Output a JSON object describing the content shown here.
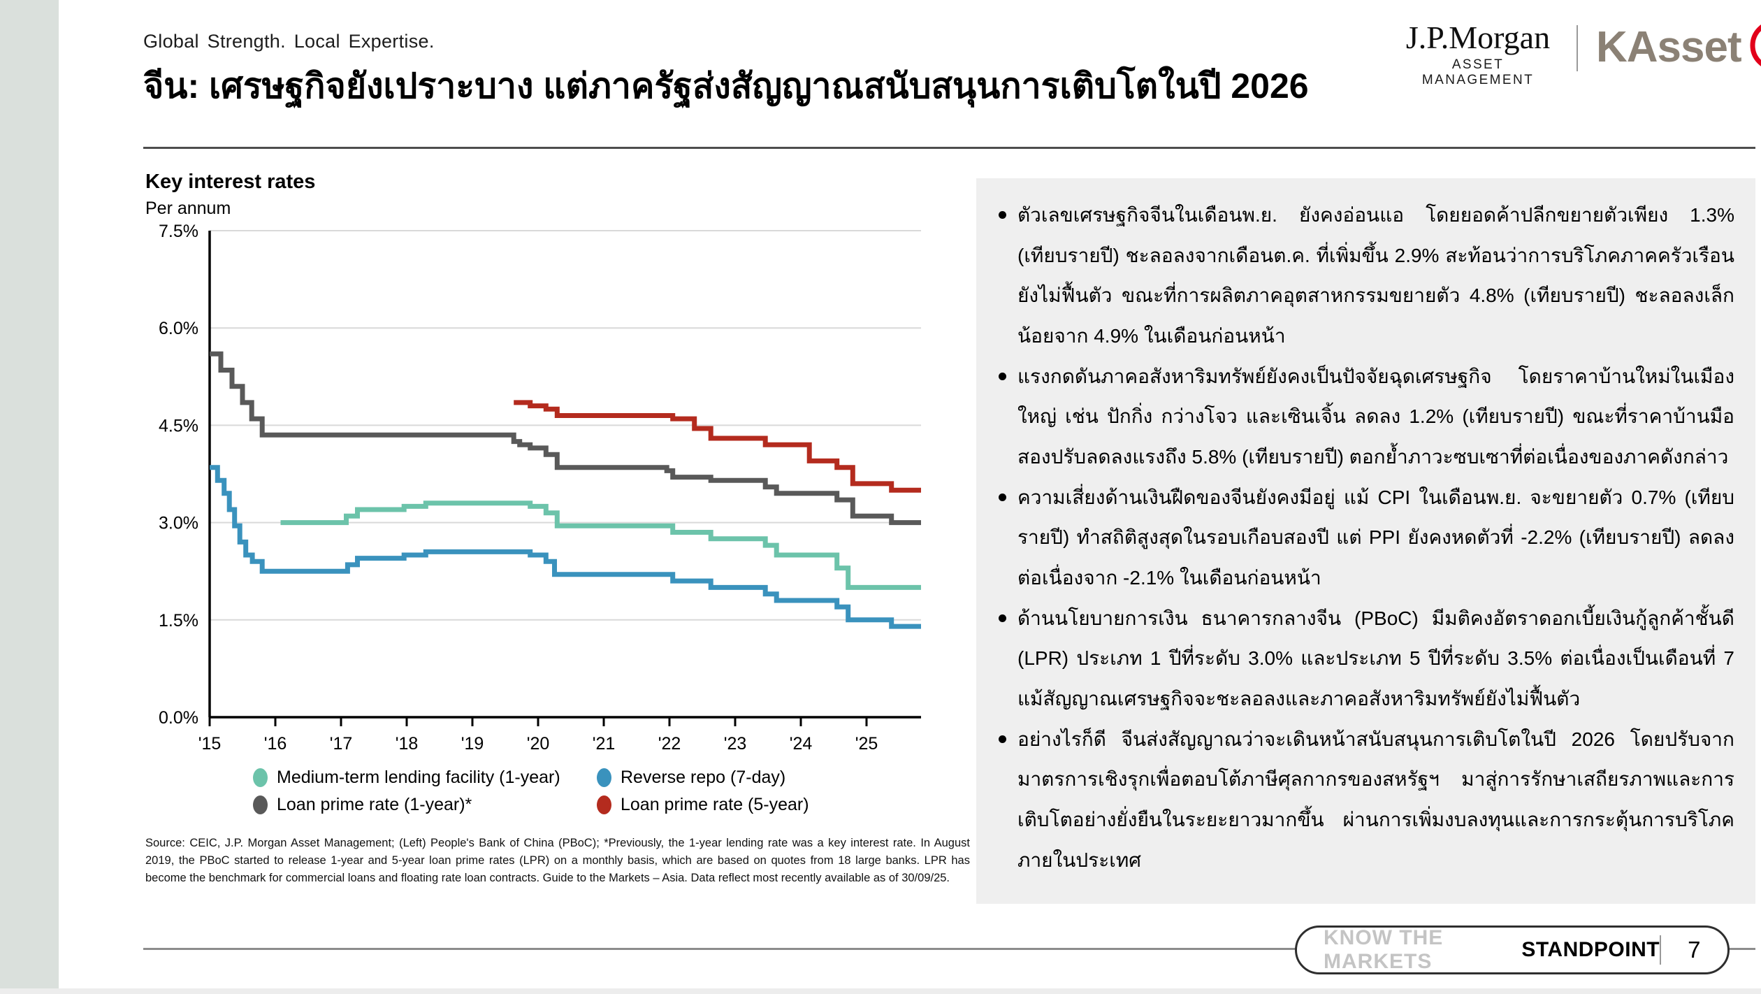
{
  "header": {
    "tagline": "Global Strength. Local Expertise.",
    "title": "จีน: เศรษฐกิจยังเปราะบาง แต่ภาครัฐส่งสัญญาณสนับสนุนการเติบโตในปี 2026"
  },
  "logos": {
    "jpmorgan_name": "J.P.Morgan",
    "jpmorgan_sub": "ASSET MANAGEMENT",
    "kasset_word": "KAsset"
  },
  "colors": {
    "left_strip": "#DAE0DC",
    "panel_bg": "#EFEFEF",
    "kasset_brand": "#8B8175",
    "kasset_ring": "#E2001A",
    "kasset_leaf": "#3FA535",
    "footer_muted": "#C4C4C4"
  },
  "chart_data": {
    "type": "line",
    "step": true,
    "title": "Key interest rates",
    "subtitle": "Per annum",
    "x_range": [
      2015,
      2025.83
    ],
    "x_ticks": [
      2015,
      2016,
      2017,
      2018,
      2019,
      2020,
      2021,
      2022,
      2023,
      2024,
      2025
    ],
    "x_tick_labels": [
      "'15",
      "'16",
      "'17",
      "'18",
      "'19",
      "'20",
      "'21",
      "'22",
      "'23",
      "'24",
      "'25"
    ],
    "ylim": [
      0,
      7.5
    ],
    "y_gridlines": [
      1.5,
      3.0,
      4.5,
      6.0,
      7.5
    ],
    "y_tick_labels": [
      "0.0%",
      "1.5%",
      "3.0%",
      "4.5%",
      "6.0%",
      "7.5%"
    ],
    "legend_position": "bottom",
    "grid": true,
    "series": [
      {
        "name": "Medium-term lending facility (1-year)",
        "color": "#6CC3AA",
        "points": [
          [
            2016.08,
            3.0
          ],
          [
            2017.08,
            3.1
          ],
          [
            2017.25,
            3.2
          ],
          [
            2017.96,
            3.25
          ],
          [
            2018.29,
            3.3
          ],
          [
            2019.88,
            3.25
          ],
          [
            2020.12,
            3.15
          ],
          [
            2020.29,
            2.95
          ],
          [
            2022.05,
            2.85
          ],
          [
            2022.63,
            2.75
          ],
          [
            2023.46,
            2.65
          ],
          [
            2023.63,
            2.5
          ],
          [
            2024.55,
            2.3
          ],
          [
            2024.72,
            2.0
          ]
        ]
      },
      {
        "name": "Reverse repo (7-day)",
        "color": "#3A92BD",
        "points": [
          [
            2015.0,
            3.85
          ],
          [
            2015.12,
            3.65
          ],
          [
            2015.22,
            3.45
          ],
          [
            2015.3,
            3.2
          ],
          [
            2015.38,
            2.95
          ],
          [
            2015.46,
            2.7
          ],
          [
            2015.55,
            2.5
          ],
          [
            2015.65,
            2.4
          ],
          [
            2015.8,
            2.25
          ],
          [
            2017.1,
            2.35
          ],
          [
            2017.25,
            2.45
          ],
          [
            2017.96,
            2.5
          ],
          [
            2018.29,
            2.55
          ],
          [
            2019.88,
            2.5
          ],
          [
            2020.12,
            2.4
          ],
          [
            2020.25,
            2.2
          ],
          [
            2022.05,
            2.1
          ],
          [
            2022.63,
            2.0
          ],
          [
            2023.46,
            1.9
          ],
          [
            2023.63,
            1.8
          ],
          [
            2024.55,
            1.7
          ],
          [
            2024.72,
            1.5
          ],
          [
            2025.38,
            1.4
          ]
        ]
      },
      {
        "name": "Loan prime rate (1-year)*",
        "color": "#595959",
        "points": [
          [
            2015.0,
            5.6
          ],
          [
            2015.17,
            5.35
          ],
          [
            2015.34,
            5.1
          ],
          [
            2015.5,
            4.85
          ],
          [
            2015.64,
            4.6
          ],
          [
            2015.8,
            4.35
          ],
          [
            2019.63,
            4.25
          ],
          [
            2019.72,
            4.2
          ],
          [
            2019.88,
            4.15
          ],
          [
            2020.12,
            4.05
          ],
          [
            2020.29,
            3.85
          ],
          [
            2021.96,
            3.8
          ],
          [
            2022.05,
            3.7
          ],
          [
            2022.63,
            3.65
          ],
          [
            2023.46,
            3.55
          ],
          [
            2023.63,
            3.45
          ],
          [
            2024.55,
            3.35
          ],
          [
            2024.79,
            3.1
          ],
          [
            2025.38,
            3.0
          ]
        ]
      },
      {
        "name": "Loan prime rate (5-year)",
        "color": "#B42B1E",
        "points": [
          [
            2019.63,
            4.85
          ],
          [
            2019.88,
            4.8
          ],
          [
            2020.12,
            4.75
          ],
          [
            2020.29,
            4.65
          ],
          [
            2022.05,
            4.6
          ],
          [
            2022.38,
            4.45
          ],
          [
            2022.63,
            4.3
          ],
          [
            2023.46,
            4.2
          ],
          [
            2024.13,
            3.95
          ],
          [
            2024.55,
            3.85
          ],
          [
            2024.79,
            3.6
          ],
          [
            2025.38,
            3.5
          ]
        ]
      }
    ],
    "source": "Source: CEIC, J.P. Morgan Asset Management; (Left) People's Bank of China (PBoC); *Previously, the 1-year lending rate was a key interest rate. In August 2019, the PBoC started to release 1-year and 5-year loan prime rates (LPR) on a monthly basis, which are based on quotes from 18 large banks. LPR has become the benchmark for commercial loans and floating rate loan contracts. Guide to the Markets – Asia. Data reflect most recently available as of 30/09/25."
  },
  "panel": {
    "bullets": [
      "ตัวเลขเศรษฐกิจจีนในเดือนพ.ย. ยังคงอ่อนแอ โดยยอดค้าปลีกขยายตัวเพียง 1.3% (เทียบรายปี) ชะลอลงจากเดือนต.ค. ที่เพิ่มขึ้น 2.9% สะท้อนว่าการบริโภคภาคครัวเรือนยังไม่ฟื้นตัว ขณะที่การผลิตภาคอุตสาหกรรมขยายตัว 4.8% (เทียบรายปี) ชะลอลงเล็กน้อยจาก 4.9% ในเดือนก่อนหน้า",
      "แรงกดดันภาคอสังหาริมทรัพย์ยังคงเป็นปัจจัยฉุดเศรษฐกิจ โดยราคาบ้านใหม่ในเมืองใหญ่ เช่น ปักกิ่ง กว่างโจว และเซินเจิ้น ลดลง 1.2% (เทียบรายปี) ขณะที่ราคาบ้านมือสองปรับลดลงแรงถึง 5.8% (เทียบรายปี) ตอกย้ำภาวะซบเซาที่ต่อเนื่องของภาคดังกล่าว",
      "ความเสี่ยงด้านเงินฝืดของจีนยังคงมีอยู่ แม้ CPI ในเดือนพ.ย. จะขยายตัว 0.7% (เทียบรายปี) ทำสถิติสูงสุดในรอบเกือบสองปี แต่ PPI ยังคงหดตัวที่ -2.2% (เทียบรายปี) ลดลงต่อเนื่องจาก -2.1% ในเดือนก่อนหน้า",
      "ด้านนโยบายการเงิน ธนาคารกลางจีน (PBoC) มีมติคงอัตราดอกเบี้ยเงินกู้ลูกค้าชั้นดี (LPR) ประเภท 1 ปีที่ระดับ 3.0% และประเภท 5 ปีที่ระดับ 3.5% ต่อเนื่องเป็นเดือนที่ 7 แม้สัญญาณเศรษฐกิจจะชะลอลงและภาคอสังหาริมทรัพย์ยังไม่ฟื้นตัว",
      "อย่างไรก็ดี จีนส่งสัญญาณว่าจะเดินหน้าสนับสนุนการเติบโตในปี 2026 โดยปรับจากมาตรการเชิงรุกเพื่อตอบโต้ภาษีศุลกากรของสหรัฐฯ มาสู่การรักษาเสถียรภาพและการเติบโตอย่างยั่งยืนในระยะยาวมากขึ้น ผ่านการเพิ่มงบลงทุนและการกระตุ้นการบริโภคภายในประเทศ"
    ]
  },
  "footer": {
    "know": "KNOW THE MARKETS",
    "standpoint": "STANDPOINT",
    "page": "7"
  }
}
